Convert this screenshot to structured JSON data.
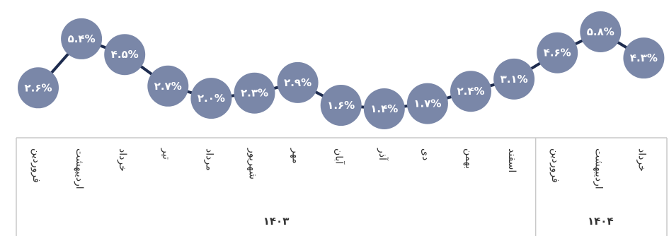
{
  "chart_data": {
    "type": "line",
    "style": "bubble-markers",
    "series": [
      {
        "color": "#7A87A8",
        "line_color": "#1E2C4F",
        "values": [
          2.6,
          5.4,
          4.5,
          2.7,
          2.0,
          2.3,
          2.9,
          1.6,
          1.4,
          1.7,
          2.4,
          3.1,
          4.6,
          5.8,
          4.3
        ],
        "labels": [
          "۲.۶%",
          "۵.۴%",
          "۴.۵%",
          "۲.۷%",
          "۲.۰%",
          "۲.۳%",
          "۲.۹%",
          "۱.۶%",
          "۱.۴%",
          "۱.۷%",
          "۲.۴%",
          "۳.۱%",
          "۴.۶%",
          "۵.۸%",
          "۴.۳%"
        ]
      }
    ],
    "categories": [
      "فروردین",
      "اردیبهشت",
      "خرداد",
      "تیر",
      "مرداد",
      "شهریور",
      "مهر",
      "آبان",
      "آذر",
      "دی",
      "بهمن",
      "اسفند",
      "فروردین",
      "اردیبهشت",
      "خرداد"
    ],
    "groups": [
      {
        "label": "۱۴۰۳",
        "count": 12
      },
      {
        "label": "۱۴۰۴",
        "count": 3
      }
    ],
    "ylim": [
      1.4,
      5.8
    ],
    "grid": false,
    "axis_color": "#C9C9C9"
  }
}
